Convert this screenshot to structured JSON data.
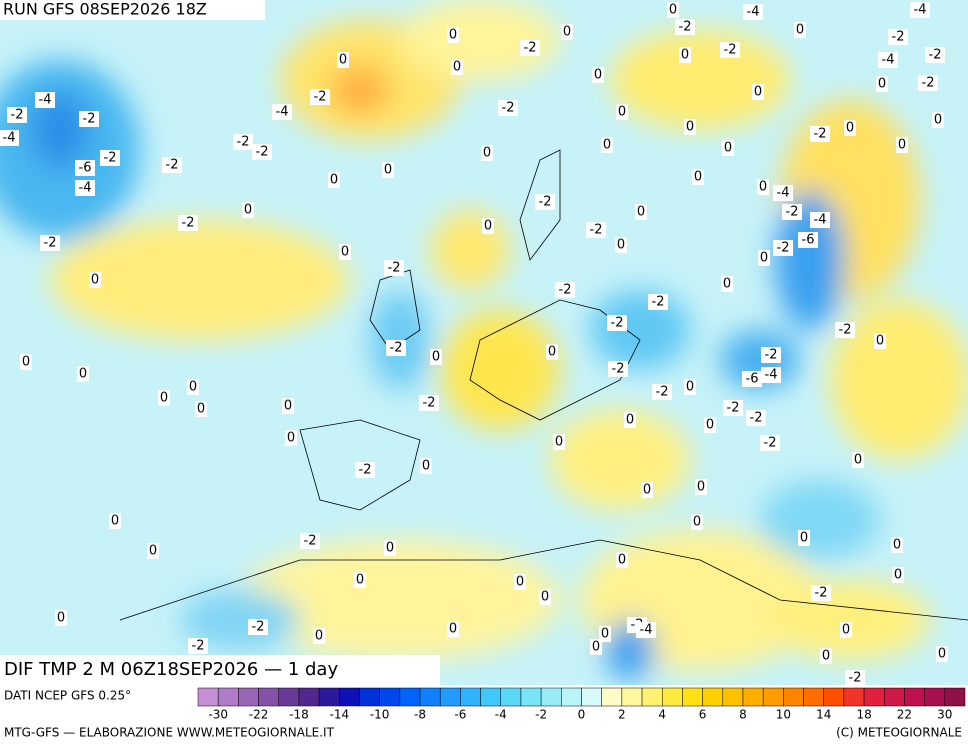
{
  "header": {
    "title": "RUN GFS 08SEP2026 18Z"
  },
  "map": {
    "field_label": "DIF TMP 2 M 06Z18SEP2026 — 1 day",
    "labels": [
      0,
      -4,
      -4,
      -2,
      0,
      -2,
      0,
      0,
      -2,
      -2,
      0,
      -4,
      -2,
      0,
      0,
      0,
      -4,
      -2,
      -2,
      -2,
      -4,
      -2,
      0,
      0,
      0,
      -2,
      0,
      0,
      0,
      -4,
      -2,
      -2,
      -2,
      -6,
      -2,
      0,
      0,
      0,
      -2,
      0,
      0,
      0,
      -4,
      0,
      0,
      -4,
      0,
      -2,
      -2,
      0,
      -2,
      -4,
      -2,
      0,
      0,
      -2,
      0,
      -6,
      0,
      -2,
      0,
      -2,
      -2,
      0,
      -2,
      -2,
      -2,
      -2,
      0,
      0,
      0,
      0,
      0,
      -2,
      -2,
      0,
      0,
      0,
      0,
      -2,
      0,
      -2,
      -6,
      -4,
      -2,
      0,
      -2,
      0,
      0,
      0,
      -2,
      -2,
      0,
      0,
      0,
      0,
      0,
      0,
      -2,
      0,
      0,
      0,
      0,
      0,
      0,
      0,
      0,
      0,
      -2,
      0,
      -2,
      0,
      -2,
      -4,
      0,
      -2,
      0,
      0,
      0,
      0,
      0,
      -2
    ]
  },
  "colorbar": {
    "source": "DATI NCEP GFS 0.25°",
    "colors": [
      "#c78fd6",
      "#b07cc8",
      "#9a67b8",
      "#8552a8",
      "#6a3a98",
      "#50288c",
      "#2a1a9a",
      "#1010b8",
      "#0030d8",
      "#0048ec",
      "#0064fa",
      "#1080ff",
      "#209cff",
      "#30b4ff",
      "#40c8fa",
      "#58d8f6",
      "#78e4f6",
      "#98ecf6",
      "#b8f4f8",
      "#d8fafa",
      "#fffcc8",
      "#fff8a0",
      "#fff270",
      "#ffea40",
      "#ffe010",
      "#ffd000",
      "#ffc000",
      "#ffae00",
      "#ff9c00",
      "#ff8400",
      "#ff6c00",
      "#ff5000",
      "#f03428",
      "#e0203c",
      "#d01848",
      "#c01050",
      "#a81050",
      "#901048"
    ],
    "ticks": [
      -30,
      -22,
      -18,
      -14,
      -10,
      -8,
      -6,
      -4,
      -2,
      0,
      2,
      4,
      6,
      8,
      10,
      14,
      18,
      22,
      30
    ]
  },
  "footer": {
    "left": "MTG-GFS — ELABORAZIONE WWW.METEOGIORNALE.IT",
    "right": "(C) METEOGIORNALE"
  }
}
